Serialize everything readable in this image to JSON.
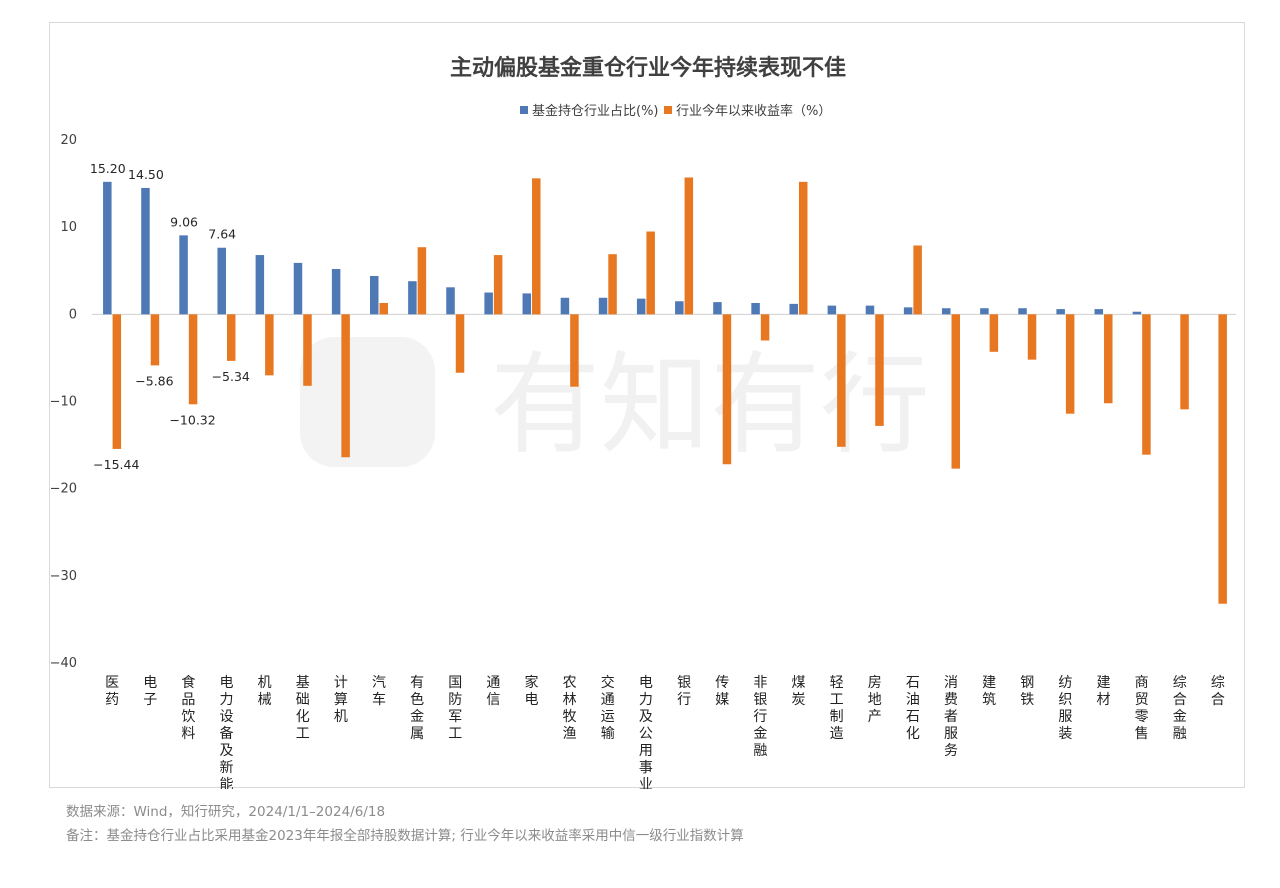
{
  "chart_data": {
    "type": "bar",
    "title": "主动偏股基金重仓行业今年持续表现不佳",
    "categories": [
      "医药",
      "电子",
      "食品饮料",
      "电力设备及新能源",
      "机械",
      "基础化工",
      "计算机",
      "汽车",
      "有色金属",
      "国防军工",
      "通信",
      "家电",
      "农林牧渔",
      "交通运输",
      "电力及公用事业",
      "银行",
      "传媒",
      "非银行金融",
      "煤炭",
      "轻工制造",
      "房地产",
      "石油石化",
      "消费者服务",
      "建筑",
      "钢铁",
      "纺织服装",
      "建材",
      "商贸零售",
      "综合金融",
      "综合"
    ],
    "series": [
      {
        "name": "基金持仓行业占比(%)",
        "color": "#4e79b5",
        "values": [
          15.2,
          14.5,
          9.06,
          7.64,
          6.8,
          5.9,
          5.2,
          4.4,
          3.8,
          3.1,
          2.5,
          2.4,
          1.9,
          1.9,
          1.8,
          1.5,
          1.4,
          1.3,
          1.2,
          1.0,
          1.0,
          0.8,
          0.7,
          0.7,
          0.7,
          0.6,
          0.6,
          0.3,
          0.0,
          0.0
        ]
      },
      {
        "name": "行业今年以来收益率（%）",
        "color": "#e87722",
        "values": [
          -15.44,
          -5.86,
          -10.32,
          -5.34,
          -7.0,
          -8.2,
          -16.4,
          1.3,
          7.7,
          -6.7,
          6.8,
          15.6,
          -8.3,
          6.9,
          9.5,
          15.7,
          -17.2,
          -3.0,
          15.2,
          -15.2,
          -12.8,
          7.9,
          -17.7,
          -4.3,
          -5.2,
          -11.4,
          -10.2,
          -16.1,
          -10.9,
          -33.2
        ]
      }
    ],
    "data_labels": {
      "s0": [
        "15.20",
        "14.50",
        "9.06",
        "7.64"
      ],
      "s1": [
        "−15.44",
        "−5.86",
        "−10.32",
        "−5.34"
      ]
    },
    "ylim": [
      -40,
      20
    ],
    "yticks": [
      20,
      10,
      0,
      -10,
      -20,
      -30,
      -40
    ],
    "ytick_labels": [
      "20",
      "10",
      "0",
      "−10",
      "−20",
      "−30",
      "−40"
    ],
    "legend_position": "top"
  },
  "watermark": "有知有行",
  "notes": {
    "source": "数据来源：Wind，知行研究，2024/1/1–2024/6/18",
    "remark": "备注：基金持仓行业占比采用基金2023年年报全部持股数据计算; 行业今年以来收益率采用中信一级行业指数计算"
  }
}
